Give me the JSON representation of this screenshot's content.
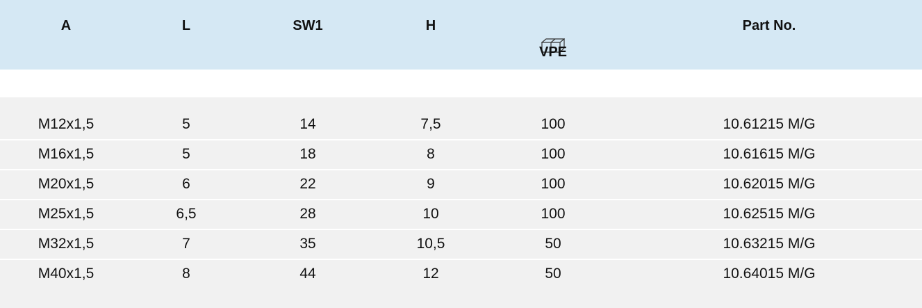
{
  "table": {
    "header": [
      "A",
      "L",
      "SW1",
      "H",
      "VPE",
      "Part No."
    ],
    "rows": [
      [
        "M12x1,5",
        "5",
        "14",
        "7,5",
        "100",
        "10.61215 M/G"
      ],
      [
        "M16x1,5",
        "5",
        "18",
        "8",
        "100",
        "10.61615 M/G"
      ],
      [
        "M20x1,5",
        "6",
        "22",
        "9",
        "100",
        "10.62015 M/G"
      ],
      [
        "M25x1,5",
        "6,5",
        "28",
        "10",
        "100",
        "10.62515 M/G"
      ],
      [
        "M32x1,5",
        "7",
        "35",
        "10,5",
        "50",
        "10.63215 M/G"
      ],
      [
        "M40x1,5",
        "8",
        "44",
        "12",
        "50",
        "10.64015 M/G"
      ]
    ]
  }
}
